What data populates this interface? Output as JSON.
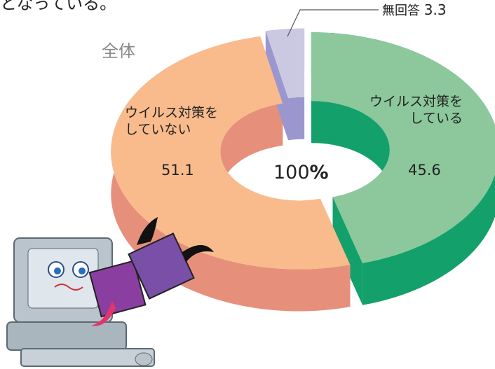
{
  "chart_data": {
    "type": "pie",
    "header_text": "となっている。",
    "subtitle": "全体",
    "center_value": 100,
    "center_unit": "%",
    "categories": [
      "ウイルス対策を\nしている",
      "ウイルス対策を\nしていない",
      "無回答"
    ],
    "values": [
      45.6,
      51.1,
      3.3
    ],
    "colors": [
      "#8cc89c",
      "#f9bb8c",
      "#cbc8e2"
    ],
    "side_colors": [
      "#14a06a",
      "#e6907c",
      "#9c96cf"
    ],
    "donut": true,
    "three_d": true
  }
}
